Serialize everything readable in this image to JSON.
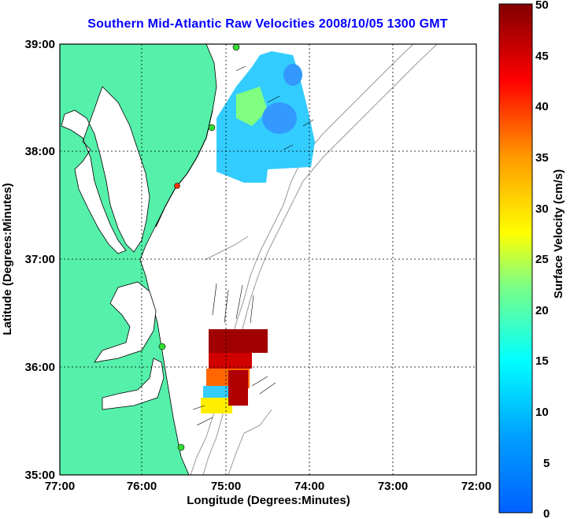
{
  "title": "Southern Mid-Atlantic Raw Velocities 2008/10/05 1300 GMT",
  "axes": {
    "xlabel": "Longitude (Degrees:Minutes)",
    "ylabel": "Latitude (Degrees:Minutes)",
    "x_ticks": [
      "77:00",
      "76:00",
      "75:00",
      "74:00",
      "73:00",
      "72:00"
    ],
    "y_ticks": [
      "39:00",
      "38:00",
      "37:00",
      "36:00",
      "35:00"
    ],
    "grid": "dotted"
  },
  "colorbar": {
    "label": "Surface Velocity (cm/s)",
    "ticks": [
      "50",
      "45",
      "40",
      "35",
      "30",
      "25",
      "20",
      "15",
      "10",
      "5",
      "0"
    ],
    "range": [
      0,
      50
    ],
    "colormap": "jet"
  },
  "colors": {
    "land": "#55f0aa",
    "water": "#ffffff",
    "title": "#0000ff",
    "station": "#33dd33",
    "station_alt": "#ff3300",
    "bathymetry": "#999999"
  }
}
